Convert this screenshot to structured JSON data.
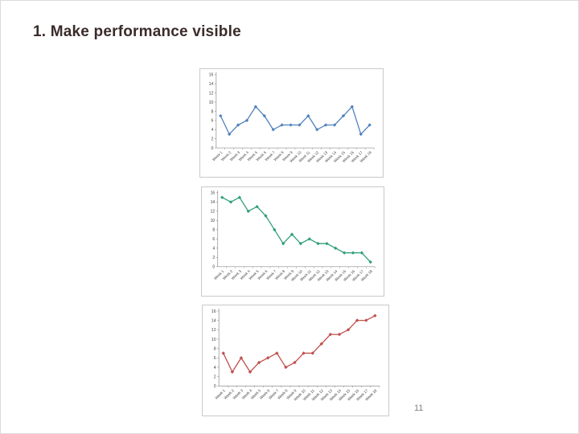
{
  "slide": {
    "title": "1. Make performance visible",
    "page_number": "11",
    "title_color": "#3a2c2a",
    "background_color": "#ffffff"
  },
  "chart_style": {
    "axis_color": "#8c8c8c",
    "tick_label_color": "#404040",
    "ylim_note": "no gridlines, plain white plot area, diamond markers",
    "panel_border_color": "#c9c9c9"
  },
  "chart_data": [
    {
      "type": "line",
      "title": "",
      "xlabel": "",
      "ylabel": "",
      "color": "#4F81BD",
      "ylim": [
        0,
        16
      ],
      "ytick_step": 2,
      "legend": "none",
      "grid": false,
      "trend": "variable",
      "categories": [
        "Week 1",
        "Week 2",
        "Week 3",
        "Week 4",
        "Week 5",
        "Week 6",
        "Week 7",
        "Week 8",
        "Week 9",
        "Week 10",
        "Week 11",
        "Week 12",
        "Week 13",
        "Week 14",
        "Week 15",
        "Week 16",
        "Week 17",
        "Week 18"
      ],
      "values": [
        7,
        3,
        5,
        6,
        9,
        7,
        4,
        5,
        5,
        5,
        7,
        4,
        5,
        5,
        7,
        9,
        3,
        5
      ]
    },
    {
      "type": "line",
      "title": "",
      "xlabel": "",
      "ylabel": "",
      "color": "#2E9E7B",
      "ylim": [
        0,
        16
      ],
      "ytick_step": 2,
      "legend": "none",
      "grid": false,
      "trend": "declining",
      "categories": [
        "Week 1",
        "Week 2",
        "Week 3",
        "Week 4",
        "Week 5",
        "Week 6",
        "Week 7",
        "Week 8",
        "Week 9",
        "Week 10",
        "Week 11",
        "Week 12",
        "Week 13",
        "Week 14",
        "Week 15",
        "Week 16",
        "Week 17",
        "Week 18"
      ],
      "values": [
        15,
        14,
        15,
        12,
        13,
        11,
        8,
        5,
        7,
        5,
        6,
        5,
        5,
        4,
        3,
        3,
        3,
        1
      ]
    },
    {
      "type": "line",
      "title": "",
      "xlabel": "",
      "ylabel": "",
      "color": "#C0504D",
      "ylim": [
        0,
        16
      ],
      "ytick_step": 2,
      "legend": "none",
      "grid": false,
      "trend": "rising",
      "categories": [
        "Week 1",
        "Week 2",
        "Week 3",
        "Week 4",
        "Week 5",
        "Week 6",
        "Week 7",
        "Week 8",
        "Week 9",
        "Week 10",
        "Week 11",
        "Week 12",
        "Week 13",
        "Week 14",
        "Week 15",
        "Week 16",
        "Week 17",
        "Week 18"
      ],
      "values": [
        7,
        3,
        6,
        3,
        5,
        6,
        7,
        4,
        5,
        7,
        7,
        9,
        11,
        11,
        12,
        14,
        14,
        15
      ]
    }
  ]
}
